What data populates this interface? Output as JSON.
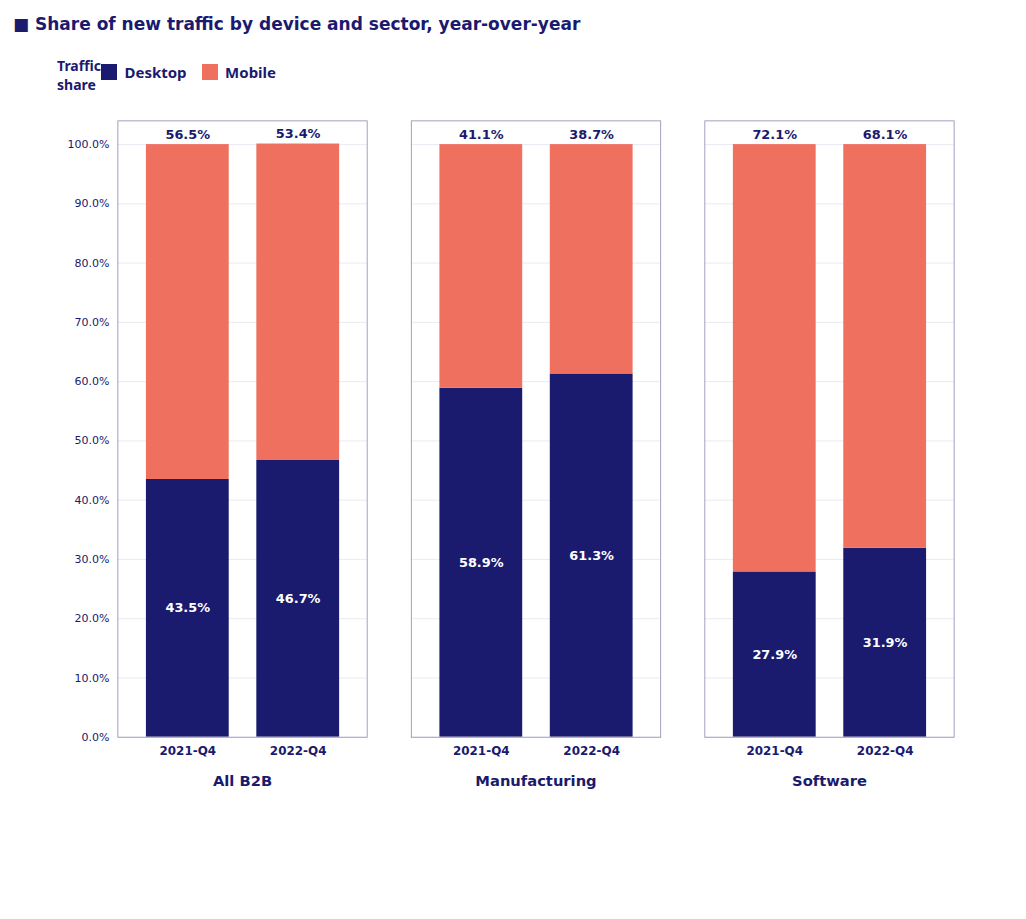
{
  "chart_data": {
    "type": "bar",
    "stacked": true,
    "title": "■ Share of new traffic by device and sector, year-over-year",
    "ylabel": "Traffic\nshare",
    "groups": [
      "All B2B",
      "Manufacturing",
      "Software"
    ],
    "categories": [
      "2021-Q4",
      "2022-Q4",
      "2021-Q4",
      "2022-Q4",
      "2021-Q4",
      "2022-Q4"
    ],
    "series": [
      {
        "name": "Desktop",
        "color": "#1a1a6e",
        "values": [
          43.5,
          46.7,
          58.9,
          61.3,
          27.9,
          31.9
        ],
        "value_labels": [
          "43.5%",
          "46.7%",
          "58.9%",
          "61.3%",
          "27.9%",
          "31.9%"
        ]
      },
      {
        "name": "Mobile",
        "color": "#f07060",
        "values": [
          56.5,
          53.4,
          41.1,
          38.7,
          72.1,
          68.1
        ],
        "value_labels": [
          "56.5%",
          "53.4%",
          "41.1%",
          "38.7%",
          "72.1%",
          "68.1%"
        ]
      }
    ],
    "ylim": [
      0,
      104
    ],
    "yticks": [
      {
        "value": 0,
        "label": "0.0%"
      },
      {
        "value": 10,
        "label": "10.0%"
      },
      {
        "value": 20,
        "label": "20.0%"
      },
      {
        "value": 30,
        "label": "30.0%"
      },
      {
        "value": 40,
        "label": "40.0%"
      },
      {
        "value": 50,
        "label": "50.0%"
      },
      {
        "value": 60,
        "label": "60.0%"
      },
      {
        "value": 70,
        "label": "70.0%"
      },
      {
        "value": 80,
        "label": "80.0%"
      },
      {
        "value": 90,
        "label": "90.0%"
      },
      {
        "value": 100,
        "label": "100.0%"
      }
    ],
    "grid": true,
    "legend": "upper left",
    "data_labels": true
  }
}
